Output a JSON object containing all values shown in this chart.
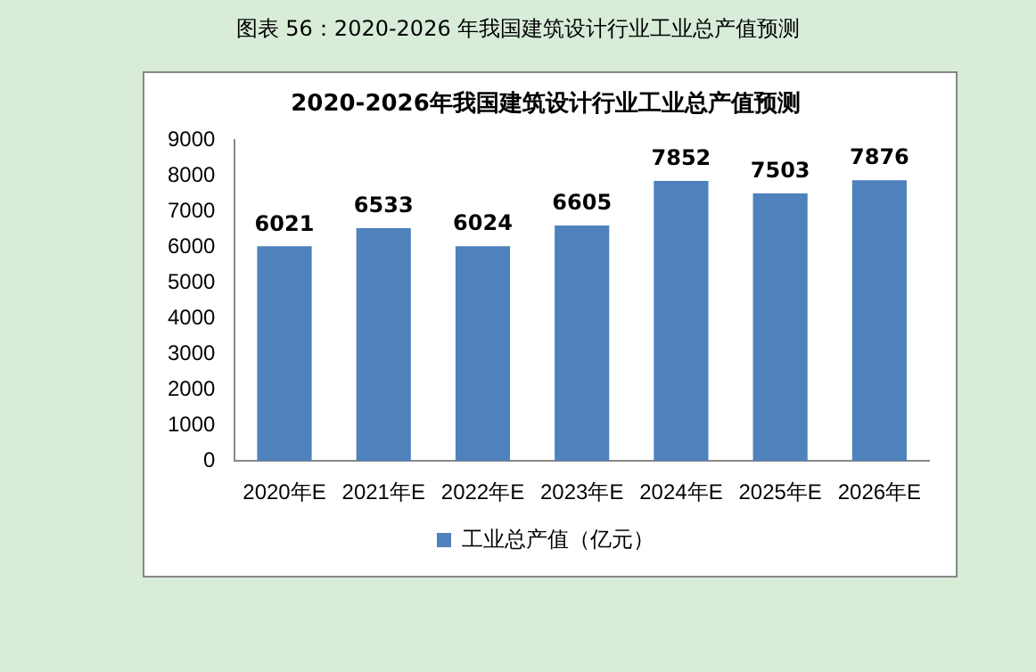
{
  "chart_data": {
    "type": "bar",
    "title": "2020-2026年我国建筑设计行业工业总产值预测",
    "annotations": [
      "图表 56：2020-2026 年我国建筑设计行业工业总产值预测"
    ],
    "categories": [
      "2020年E",
      "2021年E",
      "2022年E",
      "2023年E",
      "2024年E",
      "2025年E",
      "2026年E"
    ],
    "series": [
      {
        "name": "工业总产值（亿元）",
        "color": "#4f81bd",
        "values": [
          6021,
          6533,
          6024,
          6605,
          7852,
          7503,
          7876
        ]
      }
    ],
    "ylim": [
      0,
      9000
    ],
    "yticks": [
      0,
      1000,
      2000,
      3000,
      4000,
      5000,
      6000,
      7000,
      8000,
      9000
    ],
    "grid": false,
    "legend": "bottom",
    "data_labels": true
  }
}
